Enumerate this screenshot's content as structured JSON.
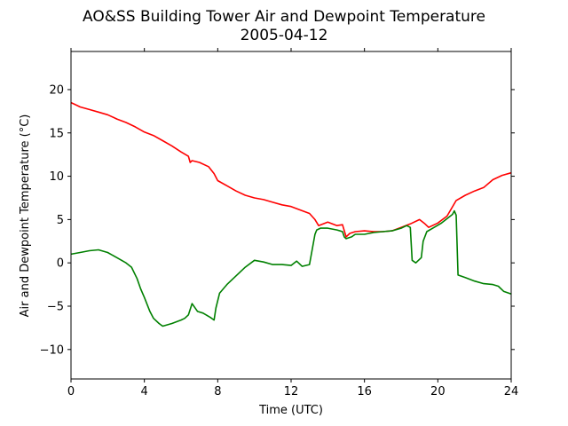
{
  "chart_data": {
    "type": "line",
    "title": "AO&SS Building Tower Air and Dewpoint Temperature",
    "subtitle": "2005-04-12",
    "xlabel": "Time (UTC)",
    "ylabel": "Air and Dewpoint Temperature (°C)",
    "xlim": [
      0,
      24
    ],
    "ylim": [
      -13.4,
      24.4
    ],
    "xticks": [
      0,
      4,
      8,
      12,
      16,
      20,
      24
    ],
    "yticks": [
      -10,
      -5,
      0,
      5,
      10,
      15,
      20
    ],
    "grid": false,
    "series": [
      {
        "color": "#ff0000",
        "x": [
          0,
          0.2,
          0.5,
          1,
          1.5,
          2,
          2.5,
          3,
          3.5,
          4,
          4.5,
          5,
          5.5,
          6,
          6.4,
          6.5,
          6.6,
          7,
          7.5,
          7.8,
          8,
          8.5,
          9,
          9.5,
          10,
          10.5,
          11,
          11.5,
          12,
          12.5,
          13,
          13.3,
          13.5,
          14,
          14.5,
          14.8,
          15,
          15.2,
          15.5,
          16,
          16.5,
          17,
          17.5,
          18,
          18.5,
          19,
          19.3,
          19.5,
          20,
          20.5,
          21,
          21.5,
          22,
          22.5,
          23,
          23.5,
          24
        ],
        "y": [
          18.5,
          18.3,
          18.0,
          17.7,
          17.4,
          17.1,
          16.6,
          16.2,
          15.7,
          15.1,
          14.7,
          14.1,
          13.5,
          12.8,
          12.3,
          11.6,
          11.8,
          11.6,
          11.1,
          10.3,
          9.5,
          8.9,
          8.3,
          7.8,
          7.5,
          7.3,
          7.0,
          6.7,
          6.5,
          6.1,
          5.7,
          5.0,
          4.3,
          4.7,
          4.3,
          4.4,
          3.0,
          3.4,
          3.6,
          3.7,
          3.6,
          3.6,
          3.7,
          4.1,
          4.5,
          5.0,
          4.5,
          4.1,
          4.6,
          5.4,
          7.2,
          7.8,
          8.3,
          8.7,
          9.6,
          10.1,
          10.4
        ]
      },
      {
        "color": "#008000",
        "x": [
          0,
          0.5,
          1,
          1.5,
          2,
          2.5,
          3,
          3.3,
          3.6,
          3.8,
          4,
          4.3,
          4.5,
          4.8,
          5,
          5.5,
          6,
          6.2,
          6.4,
          6.6,
          6.9,
          7.2,
          7.6,
          7.8,
          7.9,
          8.1,
          8.5,
          9,
          9.5,
          10,
          10.5,
          11,
          11.5,
          12,
          12.3,
          12.6,
          13,
          13.3,
          13.4,
          13.6,
          14,
          14.5,
          14.8,
          14.9,
          15,
          15.3,
          15.5,
          16,
          16.5,
          17,
          17.5,
          18,
          18.3,
          18.5,
          18.6,
          18.8,
          19.1,
          19.2,
          19.4,
          19.8,
          20.2,
          20.5,
          20.8,
          20.9,
          21,
          21.1,
          21.5,
          22,
          22.5,
          23,
          23.3,
          23.6,
          24
        ],
        "y": [
          1.0,
          1.2,
          1.4,
          1.5,
          1.2,
          0.6,
          0.0,
          -0.5,
          -1.8,
          -3.0,
          -4.0,
          -5.6,
          -6.4,
          -7.0,
          -7.3,
          -7.0,
          -6.6,
          -6.4,
          -6.0,
          -4.7,
          -5.6,
          -5.8,
          -6.3,
          -6.6,
          -5.2,
          -3.5,
          -2.5,
          -1.5,
          -0.5,
          0.3,
          0.1,
          -0.2,
          -0.2,
          -0.3,
          0.2,
          -0.4,
          -0.2,
          3.3,
          3.8,
          4.0,
          4.0,
          3.8,
          3.6,
          3.0,
          2.8,
          3.0,
          3.3,
          3.3,
          3.5,
          3.6,
          3.7,
          4.0,
          4.3,
          4.1,
          0.3,
          0.0,
          0.6,
          2.5,
          3.6,
          4.1,
          4.6,
          5.1,
          5.6,
          6.0,
          5.5,
          -1.4,
          -1.7,
          -2.1,
          -2.4,
          -2.5,
          -2.7,
          -3.3,
          -3.6
        ]
      }
    ]
  }
}
